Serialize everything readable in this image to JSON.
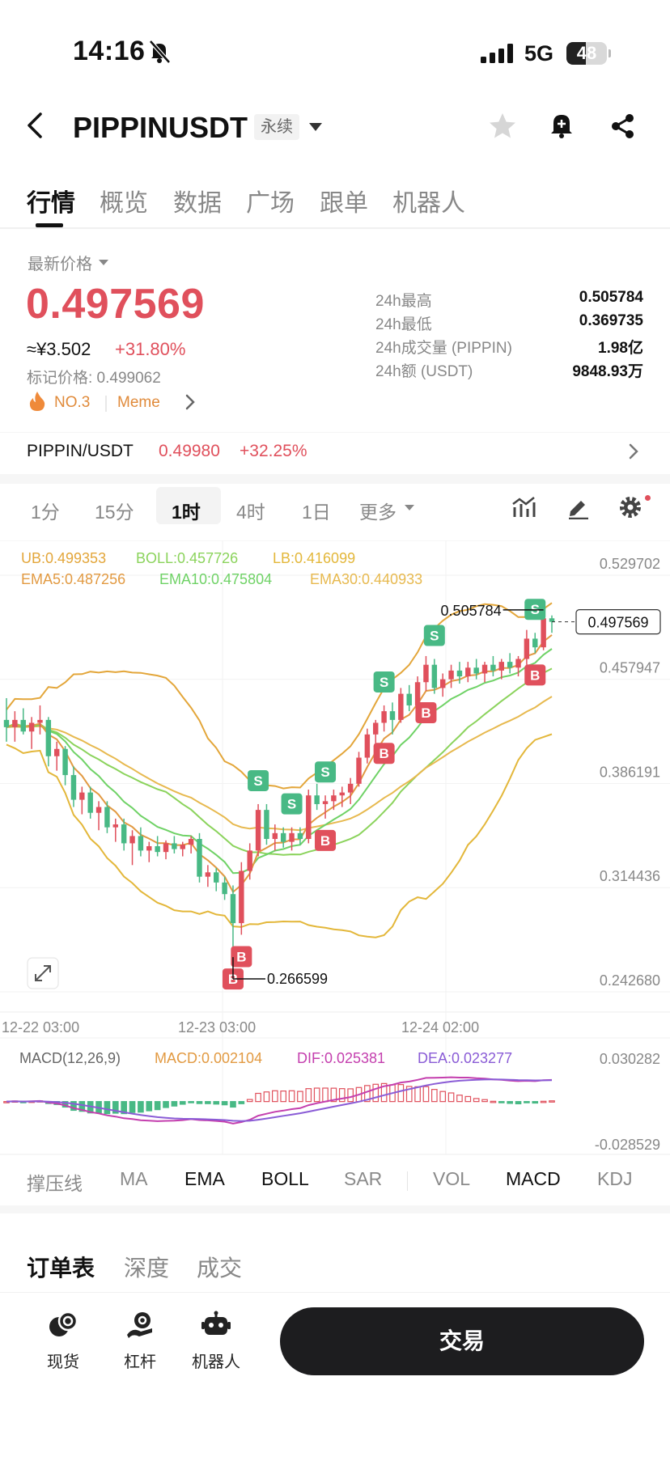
{
  "status_bar": {
    "time": "14:16",
    "network": "5G",
    "battery": "48"
  },
  "header": {
    "symbol": "PIPPINUSDT",
    "contract_type": "永续"
  },
  "tabs": [
    {
      "label": "行情",
      "active": true
    },
    {
      "label": "概览"
    },
    {
      "label": "数据"
    },
    {
      "label": "广场"
    },
    {
      "label": "跟单"
    },
    {
      "label": "机器人"
    }
  ],
  "price_block": {
    "last_price_label": "最新价格",
    "last_price": "0.497569",
    "cny_price": "≈¥3.502",
    "change_pct": "+31.80%",
    "mark_price": "标记价格: 0.499062",
    "rank": "NO.3",
    "tag": "Meme",
    "stats": [
      {
        "label": "24h最高",
        "value": "0.505784"
      },
      {
        "label": "24h最低",
        "value": "0.369735"
      },
      {
        "label": "24h成交量 (PIPPIN)",
        "value": "1.98亿"
      },
      {
        "label": "24h额 (USDT)",
        "value": "9848.93万"
      }
    ]
  },
  "pair_row": {
    "name": "PIPPIN/USDT",
    "price": "0.49980",
    "change": "+32.25%"
  },
  "intervals": [
    {
      "label": "1分"
    },
    {
      "label": "15分"
    },
    {
      "label": "1时",
      "active": true
    },
    {
      "label": "4时"
    },
    {
      "label": "1日"
    },
    {
      "label": "更多"
    }
  ],
  "chart_data": {
    "type": "candlestick",
    "interval": "1时",
    "overlay_legend": {
      "UB": "UB:0.499353",
      "BOLL": "BOLL:0.457726",
      "LB": "LB:0.416099",
      "EMA5": "EMA5:0.487256",
      "EMA10": "EMA10:0.475804",
      "EMA30": "EMA30:0.440933"
    },
    "y_ticks": [
      "0.529702",
      "0.457947",
      "0.386191",
      "0.314436",
      "0.242680"
    ],
    "y_range": [
      0.24268,
      0.529702
    ],
    "x_ticks": [
      "12-22 03:00",
      "12-23 03:00",
      "12-24 02:00"
    ],
    "current_price": "0.497569",
    "high_marker": "0.505784",
    "low_marker": "0.266599",
    "candles": [
      [
        0.43,
        0.445,
        0.415,
        0.425
      ],
      [
        0.425,
        0.436,
        0.415,
        0.43
      ],
      [
        0.43,
        0.438,
        0.42,
        0.422
      ],
      [
        0.422,
        0.432,
        0.41,
        0.428
      ],
      [
        0.428,
        0.44,
        0.42,
        0.43
      ],
      [
        0.43,
        0.432,
        0.398,
        0.405
      ],
      [
        0.405,
        0.415,
        0.395,
        0.41
      ],
      [
        0.41,
        0.412,
        0.385,
        0.392
      ],
      [
        0.392,
        0.398,
        0.37,
        0.375
      ],
      [
        0.375,
        0.384,
        0.365,
        0.38
      ],
      [
        0.38,
        0.384,
        0.362,
        0.366
      ],
      [
        0.366,
        0.374,
        0.354,
        0.37
      ],
      [
        0.37,
        0.374,
        0.352,
        0.356
      ],
      [
        0.356,
        0.362,
        0.346,
        0.358
      ],
      [
        0.358,
        0.362,
        0.34,
        0.345
      ],
      [
        0.345,
        0.354,
        0.33,
        0.35
      ],
      [
        0.35,
        0.356,
        0.336,
        0.34
      ],
      [
        0.34,
        0.346,
        0.332,
        0.343
      ],
      [
        0.343,
        0.35,
        0.336,
        0.339
      ],
      [
        0.339,
        0.347,
        0.334,
        0.345
      ],
      [
        0.345,
        0.35,
        0.338,
        0.341
      ],
      [
        0.341,
        0.346,
        0.336,
        0.344
      ],
      [
        0.344,
        0.35,
        0.338,
        0.348
      ],
      [
        0.348,
        0.352,
        0.318,
        0.322
      ],
      [
        0.322,
        0.33,
        0.315,
        0.325
      ],
      [
        0.325,
        0.328,
        0.312,
        0.318
      ],
      [
        0.318,
        0.322,
        0.306,
        0.31
      ],
      [
        0.31,
        0.316,
        0.266599,
        0.29
      ],
      [
        0.29,
        0.332,
        0.282,
        0.326
      ],
      [
        0.326,
        0.345,
        0.32,
        0.34
      ],
      [
        0.34,
        0.372,
        0.336,
        0.368
      ],
      [
        0.368,
        0.372,
        0.344,
        0.348
      ],
      [
        0.348,
        0.358,
        0.34,
        0.352
      ],
      [
        0.352,
        0.356,
        0.342,
        0.346
      ],
      [
        0.346,
        0.356,
        0.34,
        0.352
      ],
      [
        0.352,
        0.356,
        0.344,
        0.348
      ],
      [
        0.348,
        0.382,
        0.345,
        0.378
      ],
      [
        0.378,
        0.386,
        0.368,
        0.372
      ],
      [
        0.372,
        0.378,
        0.362,
        0.374
      ],
      [
        0.374,
        0.382,
        0.368,
        0.378
      ],
      [
        0.378,
        0.384,
        0.37,
        0.38
      ],
      [
        0.38,
        0.39,
        0.372,
        0.386
      ],
      [
        0.386,
        0.408,
        0.384,
        0.404
      ],
      [
        0.404,
        0.424,
        0.4,
        0.42
      ],
      [
        0.42,
        0.43,
        0.412,
        0.428
      ],
      [
        0.428,
        0.44,
        0.422,
        0.436
      ],
      [
        0.436,
        0.442,
        0.42,
        0.43
      ],
      [
        0.43,
        0.452,
        0.428,
        0.448
      ],
      [
        0.448,
        0.454,
        0.436,
        0.44
      ],
      [
        0.44,
        0.46,
        0.438,
        0.456
      ],
      [
        0.456,
        0.474,
        0.45,
        0.468
      ],
      [
        0.468,
        0.472,
        0.448,
        0.452
      ],
      [
        0.452,
        0.462,
        0.446,
        0.458
      ],
      [
        0.458,
        0.468,
        0.452,
        0.464
      ],
      [
        0.464,
        0.47,
        0.455,
        0.46
      ],
      [
        0.46,
        0.47,
        0.456,
        0.466
      ],
      [
        0.466,
        0.472,
        0.458,
        0.462
      ],
      [
        0.462,
        0.47,
        0.456,
        0.468
      ],
      [
        0.468,
        0.474,
        0.46,
        0.464
      ],
      [
        0.464,
        0.472,
        0.458,
        0.47
      ],
      [
        0.47,
        0.476,
        0.462,
        0.466
      ],
      [
        0.466,
        0.474,
        0.46,
        0.472
      ],
      [
        0.472,
        0.492,
        0.468,
        0.486
      ],
      [
        0.486,
        0.49,
        0.476,
        0.48
      ],
      [
        0.48,
        0.505784,
        0.478,
        0.5
      ],
      [
        0.5,
        0.502,
        0.49,
        0.497569
      ]
    ],
    "trade_signals": [
      {
        "index": 27,
        "side": "B"
      },
      {
        "index": 28,
        "side": "B"
      },
      {
        "index": 30,
        "side": "S"
      },
      {
        "index": 34,
        "side": "S"
      },
      {
        "index": 38,
        "side": "B"
      },
      {
        "index": 38,
        "side": "S"
      },
      {
        "index": 45,
        "side": "S"
      },
      {
        "index": 45,
        "side": "B"
      },
      {
        "index": 50,
        "side": "B"
      },
      {
        "index": 51,
        "side": "S"
      },
      {
        "index": 63,
        "side": "S"
      },
      {
        "index": 63,
        "side": "B"
      }
    ],
    "macd_panel": {
      "legend": {
        "name": "MACD(12,26,9)",
        "macd": "MACD:0.002104",
        "dif": "DIF:0.025381",
        "dea": "DEA:0.023277"
      },
      "y_ticks": [
        "0.030282",
        "-0.028529"
      ],
      "y_range": [
        -0.028529,
        0.030282
      ]
    },
    "colors": {
      "up": "#e0505c",
      "down": "#48b985",
      "ub": "#e3a63a",
      "boll": "#8bd35c",
      "lb": "#e3b73a",
      "ema5": "#e29a42",
      "ema10": "#6fd266",
      "ema30": "#e7b94f",
      "dif": "#c43fae",
      "dea": "#8a5cd6",
      "macd": "#e29a42"
    }
  },
  "indicator_tabs": [
    {
      "label": "撑压线"
    },
    {
      "label": "MA"
    },
    {
      "label": "EMA",
      "on": true
    },
    {
      "label": "BOLL",
      "on": true
    },
    {
      "label": "SAR"
    },
    {
      "label": "VOL"
    },
    {
      "label": "MACD",
      "on": true
    },
    {
      "label": "KDJ"
    }
  ],
  "order_tabs": [
    {
      "label": "订单表",
      "active": true
    },
    {
      "label": "深度"
    },
    {
      "label": "成交"
    }
  ],
  "bottom_bar": {
    "spot": "现货",
    "leverage": "杠杆",
    "bot": "机器人",
    "trade": "交易"
  }
}
